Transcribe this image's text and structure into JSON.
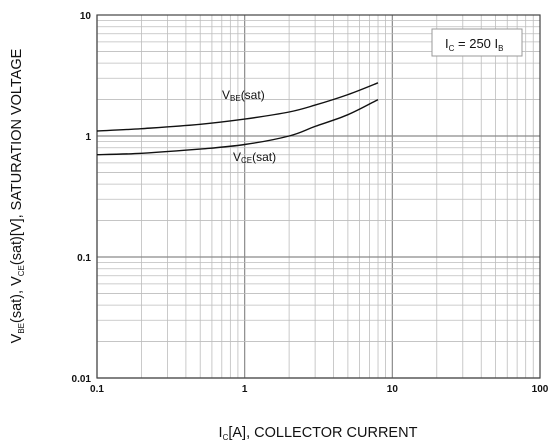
{
  "chart_data": {
    "type": "line",
    "x_scale": "log",
    "y_scale": "log",
    "xlim": [
      0.1,
      100
    ],
    "ylim": [
      0.01,
      10
    ],
    "grid": true,
    "x_ticks": [
      "0.1",
      "1",
      "10",
      "100"
    ],
    "y_ticks": [
      "0.01",
      "0.1",
      "1",
      "10"
    ],
    "xlabel": {
      "main": "I",
      "sub": "C",
      "rest": "[A], COLLECTOR CURRENT"
    },
    "ylabel": {
      "p1": "V",
      "s1": "BE",
      "p2": "(sat), V",
      "s2": "CE",
      "p3": "(sat)[V], SATURATION VOLTAGE"
    },
    "annotation": {
      "p1": "I",
      "s1": "C",
      "p2": " = 250 I",
      "s2": "B"
    },
    "series": [
      {
        "name": {
          "main": "V",
          "sub": "BE",
          "rest": "(sat)"
        },
        "x": [
          0.1,
          0.2,
          0.5,
          1,
          2,
          3,
          5,
          8
        ],
        "y": [
          1.1,
          1.15,
          1.25,
          1.38,
          1.58,
          1.8,
          2.2,
          2.75
        ]
      },
      {
        "name": {
          "main": "V",
          "sub": "CE",
          "rest": "(sat)"
        },
        "x": [
          0.1,
          0.2,
          0.5,
          1,
          2,
          3,
          5,
          8
        ],
        "y": [
          0.7,
          0.72,
          0.78,
          0.85,
          1.0,
          1.2,
          1.5,
          2.0
        ]
      }
    ]
  }
}
